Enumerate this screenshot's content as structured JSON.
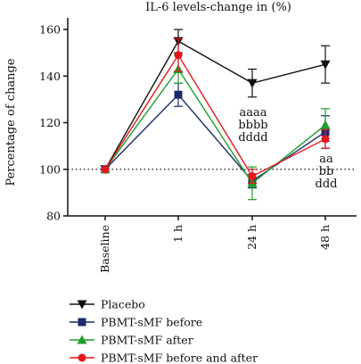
{
  "chart_data": {
    "type": "line",
    "title": "IL-6 levels-change in (%)",
    "xlabel": "",
    "ylabel": "Percentage of change",
    "categories": [
      "Baseline",
      "1 h",
      "24 h",
      "48 h"
    ],
    "ylim": [
      80,
      165
    ],
    "yticks": [
      80,
      100,
      120,
      140,
      160
    ],
    "reference_line": 100,
    "grid": false,
    "legend_position": "bottom-left",
    "series": [
      {
        "name": "Placebo",
        "color": "#111111",
        "marker": "triangle-down",
        "values": [
          100,
          155,
          137,
          145
        ],
        "err": [
          0,
          5,
          6,
          8
        ]
      },
      {
        "name": "PBMT-sMF before",
        "color": "#1b2a6b",
        "marker": "square",
        "values": [
          100,
          132,
          95,
          116
        ],
        "err": [
          0,
          5,
          3,
          7
        ]
      },
      {
        "name": "PBMT-sMF after",
        "color": "#1e9e2a",
        "marker": "triangle-up",
        "values": [
          100,
          143,
          94,
          119
        ],
        "err": [
          0,
          6,
          7,
          7
        ]
      },
      {
        "name": "PBMT-sMF before and after",
        "color": "#e5161c",
        "marker": "circle",
        "values": [
          100,
          149,
          97,
          113
        ],
        "err": [
          0,
          7,
          3,
          4
        ]
      }
    ],
    "annotations": [
      {
        "x": "24 h",
        "lines": [
          "aaaa",
          "bbbb",
          "dddd"
        ]
      },
      {
        "x": "48 h",
        "lines": [
          "aa",
          "bb",
          "ddd"
        ]
      }
    ]
  }
}
